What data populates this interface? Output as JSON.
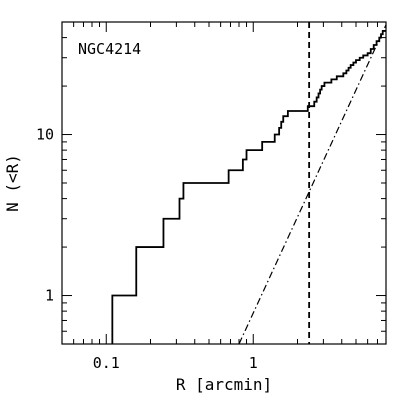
{
  "chart_data": {
    "type": "line",
    "annotation": "NGC4214",
    "xlabel": "R [arcmin]",
    "ylabel": "N (<R)",
    "xscale": "log",
    "yscale": "log",
    "xlim": [
      0.05,
      8.0
    ],
    "ylim": [
      0.5,
      50
    ],
    "x_tick_labels": [
      {
        "value": 0.1,
        "label": "0.1"
      },
      {
        "value": 1,
        "label": "1"
      }
    ],
    "y_tick_labels": [
      {
        "value": 1,
        "label": "1"
      },
      {
        "value": 10,
        "label": "10"
      }
    ],
    "grid": false,
    "series": [
      {
        "style": "solid-step",
        "points": [
          [
            0.11,
            0.5
          ],
          [
            0.11,
            1
          ],
          [
            0.16,
            1
          ],
          [
            0.16,
            2
          ],
          [
            0.245,
            2
          ],
          [
            0.245,
            3
          ],
          [
            0.315,
            3
          ],
          [
            0.315,
            4
          ],
          [
            0.335,
            4
          ],
          [
            0.335,
            5
          ],
          [
            0.68,
            5
          ],
          [
            0.68,
            6
          ],
          [
            0.85,
            6
          ],
          [
            0.85,
            7
          ],
          [
            0.9,
            7
          ],
          [
            0.9,
            8
          ],
          [
            1.15,
            8
          ],
          [
            1.15,
            9
          ],
          [
            1.4,
            9
          ],
          [
            1.4,
            10
          ],
          [
            1.5,
            10
          ],
          [
            1.5,
            11
          ],
          [
            1.55,
            11
          ],
          [
            1.55,
            12
          ],
          [
            1.6,
            12
          ],
          [
            1.6,
            13
          ],
          [
            1.72,
            13
          ],
          [
            1.72,
            14
          ],
          [
            2.35,
            14
          ],
          [
            2.35,
            15
          ],
          [
            2.6,
            15
          ],
          [
            2.6,
            16
          ],
          [
            2.7,
            16
          ],
          [
            2.7,
            17
          ],
          [
            2.78,
            17
          ],
          [
            2.78,
            18
          ],
          [
            2.85,
            18
          ],
          [
            2.85,
            19
          ],
          [
            2.92,
            19
          ],
          [
            2.92,
            20
          ],
          [
            3.05,
            20
          ],
          [
            3.05,
            21
          ],
          [
            3.4,
            21
          ],
          [
            3.4,
            22
          ],
          [
            3.7,
            22
          ],
          [
            3.7,
            23
          ],
          [
            4.1,
            23
          ],
          [
            4.1,
            24
          ],
          [
            4.3,
            24
          ],
          [
            4.3,
            25
          ],
          [
            4.45,
            25
          ],
          [
            4.45,
            26
          ],
          [
            4.6,
            26
          ],
          [
            4.6,
            27
          ],
          [
            4.8,
            27
          ],
          [
            4.8,
            28
          ],
          [
            5.0,
            28
          ],
          [
            5.0,
            29
          ],
          [
            5.3,
            29
          ],
          [
            5.3,
            30
          ],
          [
            5.6,
            30
          ],
          [
            5.6,
            31
          ],
          [
            6.0,
            31
          ],
          [
            6.0,
            32
          ],
          [
            6.3,
            32
          ],
          [
            6.3,
            34
          ],
          [
            6.6,
            34
          ],
          [
            6.6,
            36
          ],
          [
            6.9,
            36
          ],
          [
            6.9,
            38
          ],
          [
            7.2,
            38
          ],
          [
            7.2,
            40
          ],
          [
            7.4,
            40
          ],
          [
            7.4,
            42
          ],
          [
            7.6,
            42
          ],
          [
            7.6,
            44
          ],
          [
            8.0,
            44
          ]
        ]
      },
      {
        "style": "dash-dot",
        "points": [
          [
            0.8,
            0.5
          ],
          [
            8.0,
            48
          ]
        ]
      }
    ],
    "vertical_lines": [
      {
        "x": 2.4,
        "style": "dashed"
      }
    ]
  }
}
